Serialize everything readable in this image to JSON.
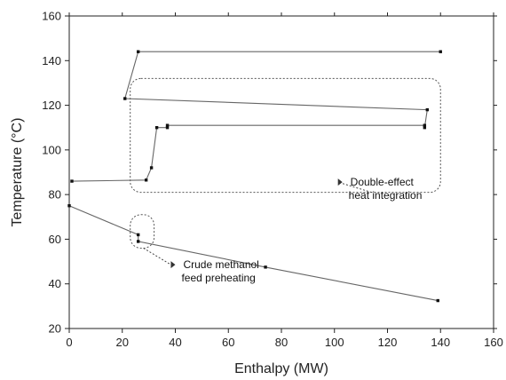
{
  "chart_data": {
    "type": "line",
    "xlabel": "Enthalpy (MW)",
    "ylabel": "Temperature (°C)",
    "xlim": [
      0,
      160
    ],
    "ylim": [
      20,
      160
    ],
    "xticks": [
      0,
      20,
      40,
      60,
      80,
      100,
      120,
      140,
      160
    ],
    "yticks": [
      20,
      40,
      60,
      80,
      100,
      120,
      140,
      160
    ],
    "grid": false,
    "series": [
      {
        "points": [
          [
            1,
            86
          ],
          [
            29,
            86.5
          ],
          [
            31,
            92
          ],
          [
            33,
            110
          ],
          [
            37,
            110
          ],
          [
            37,
            111
          ],
          [
            134,
            111
          ],
          [
            134,
            110
          ],
          [
            135,
            118
          ],
          [
            21,
            123
          ],
          [
            26,
            144
          ],
          [
            140,
            144
          ]
        ]
      },
      {
        "points": [
          [
            0,
            75
          ],
          [
            26,
            62
          ],
          [
            26,
            59
          ],
          [
            74,
            47.5
          ],
          [
            139,
            32.5
          ]
        ]
      }
    ],
    "annotations": [
      {
        "lines": [
          "Double-effect",
          "heat integration"
        ],
        "box": {
          "x": [
            23,
            140
          ],
          "y": [
            81,
            132
          ]
        },
        "text_at": [
          106,
          84
        ],
        "arrow_from": [
          114,
          81
        ]
      },
      {
        "lines": [
          "Crude methanol",
          "feed preheating"
        ],
        "box": {
          "x": [
            23,
            32
          ],
          "y": [
            56,
            71
          ]
        },
        "text_at": [
          43,
          47
        ],
        "arrow_from": [
          28,
          56
        ]
      }
    ]
  }
}
